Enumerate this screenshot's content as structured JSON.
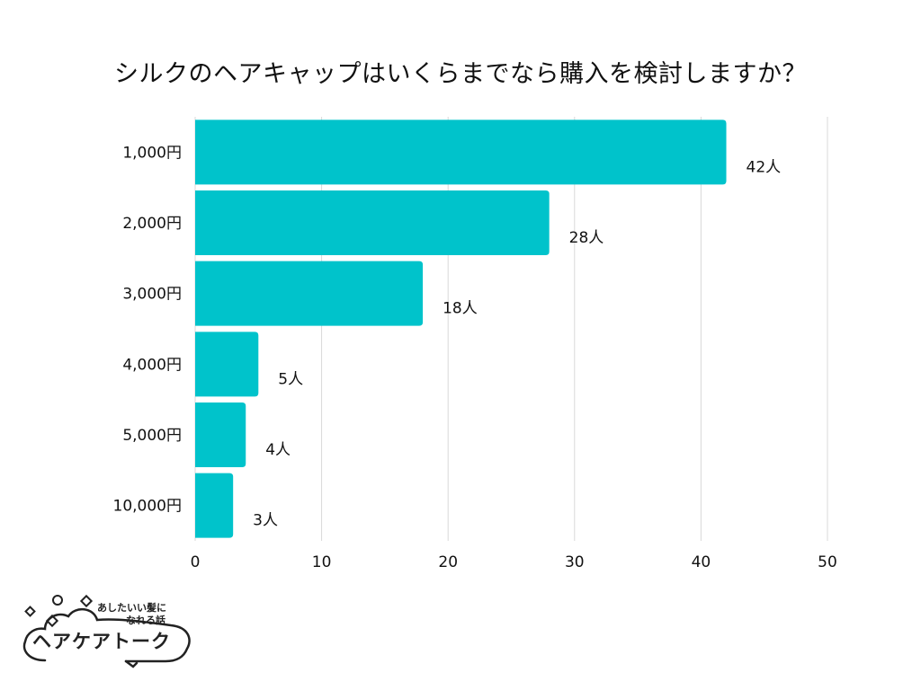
{
  "chart_data": {
    "type": "bar",
    "orientation": "horizontal",
    "title": "シルクのヘアキャップはいくらまでなら購入を検討しますか？",
    "categories": [
      "1,000円",
      "2,000円",
      "3,000円",
      "4,000円",
      "5,000円",
      "10,000円"
    ],
    "values": [
      42,
      28,
      18,
      5,
      4,
      3
    ],
    "value_labels": [
      "42人",
      "28人",
      "18人",
      "5人",
      "4人",
      "3人"
    ],
    "xlim": [
      0,
      50
    ],
    "xticks": [
      0,
      10,
      20,
      30,
      40,
      50
    ],
    "grid": true,
    "bar_color": "#00C3CB",
    "grid_color": "#D9D9D9"
  },
  "logo": {
    "tagline_1": "あしたいい髪に",
    "tagline_2": "なれる話",
    "name": "ヘアケアトーク"
  }
}
